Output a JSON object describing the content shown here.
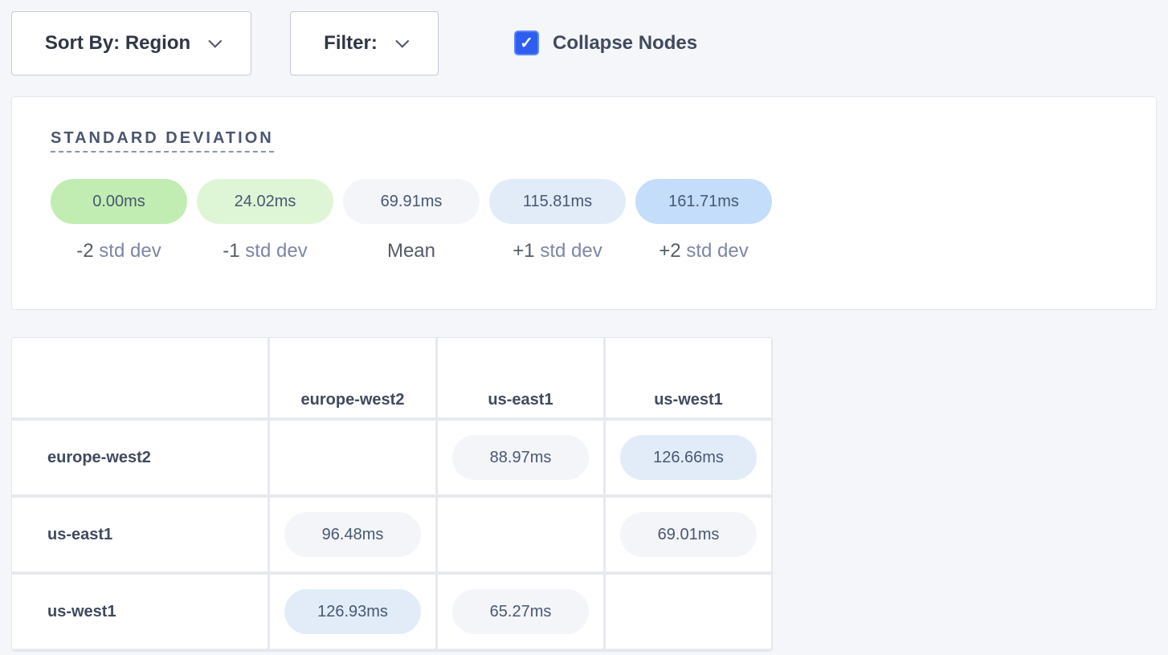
{
  "toolbar": {
    "sort_label": "Sort By: Region",
    "filter_label": "Filter:",
    "collapse_label": "Collapse Nodes",
    "collapse_checked": true
  },
  "legend": {
    "title": "STANDARD DEVIATION",
    "items": [
      {
        "value": "0.00ms",
        "prefix": "-2",
        "suffix": " std dev",
        "color": "#c1edb3"
      },
      {
        "value": "24.02ms",
        "prefix": "-1",
        "suffix": " std dev",
        "color": "#dff6d6"
      },
      {
        "value": "69.91ms",
        "prefix": "Mean",
        "suffix": "",
        "color": "#f3f5f9"
      },
      {
        "value": "115.81ms",
        "prefix": "+1",
        "suffix": " std dev",
        "color": "#e2ecf9"
      },
      {
        "value": "161.71ms",
        "prefix": "+2",
        "suffix": " std dev",
        "color": "#c3ddfa"
      }
    ]
  },
  "matrix": {
    "columns": [
      "europe-west2",
      "us-east1",
      "us-west1"
    ],
    "rows": [
      {
        "label": "europe-west2",
        "cells": [
          null,
          {
            "value": "88.97ms",
            "color": "#f3f5f9"
          },
          {
            "value": "126.66ms",
            "color": "#e2ecf9"
          }
        ]
      },
      {
        "label": "us-east1",
        "cells": [
          {
            "value": "96.48ms",
            "color": "#f3f5f9"
          },
          null,
          {
            "value": "69.01ms",
            "color": "#f3f5f9"
          }
        ]
      },
      {
        "label": "us-west1",
        "cells": [
          {
            "value": "126.93ms",
            "color": "#e2ecf9"
          },
          {
            "value": "65.27ms",
            "color": "#f3f5f9"
          },
          null
        ]
      }
    ]
  }
}
